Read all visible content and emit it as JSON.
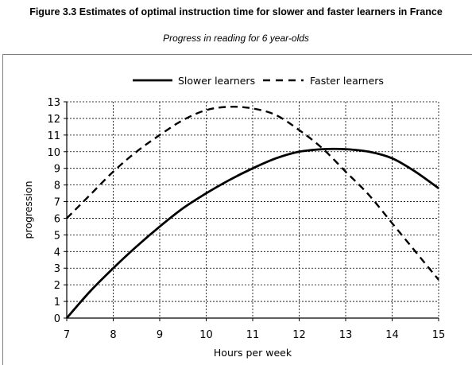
{
  "figure": {
    "title": "Figure 3.3 Estimates of optimal instruction time for slower and faster learners in France",
    "subtitle": "Progress in reading for 6 year-olds"
  },
  "chart_data": {
    "type": "line",
    "xlabel": "Hours per week",
    "ylabel": "progression",
    "xlim": [
      7,
      15
    ],
    "ylim": [
      0,
      13
    ],
    "x_ticks": [
      "7",
      "8",
      "9",
      "10",
      "11",
      "12",
      "13",
      "14",
      "15"
    ],
    "y_ticks": [
      "0",
      "1",
      "2",
      "3",
      "4",
      "5",
      "6",
      "7",
      "8",
      "9",
      "10",
      "11",
      "12",
      "13"
    ],
    "grid": true,
    "legend_position": "top-center",
    "series": [
      {
        "name": "Slower learners",
        "style": "solid",
        "color": "#000000",
        "x": [
          7,
          7.5,
          8,
          8.5,
          9,
          9.5,
          10,
          10.5,
          11,
          11.5,
          12,
          12.5,
          13,
          13.5,
          14,
          14.5,
          15
        ],
        "y": [
          0,
          1.6,
          3.0,
          4.3,
          5.5,
          6.6,
          7.5,
          8.3,
          9.0,
          9.6,
          10.0,
          10.15,
          10.15,
          10.0,
          9.6,
          8.8,
          7.8
        ]
      },
      {
        "name": "Faster learners",
        "style": "dashed",
        "color": "#000000",
        "x": [
          7,
          7.5,
          8,
          8.5,
          9,
          9.5,
          10,
          10.5,
          11,
          11.5,
          12,
          12.5,
          13,
          13.5,
          14,
          14.5,
          15
        ],
        "y": [
          6.0,
          7.4,
          8.8,
          10.0,
          11.0,
          11.9,
          12.5,
          12.7,
          12.6,
          12.2,
          11.3,
          10.2,
          8.8,
          7.4,
          5.7,
          4.0,
          2.3
        ]
      }
    ]
  }
}
